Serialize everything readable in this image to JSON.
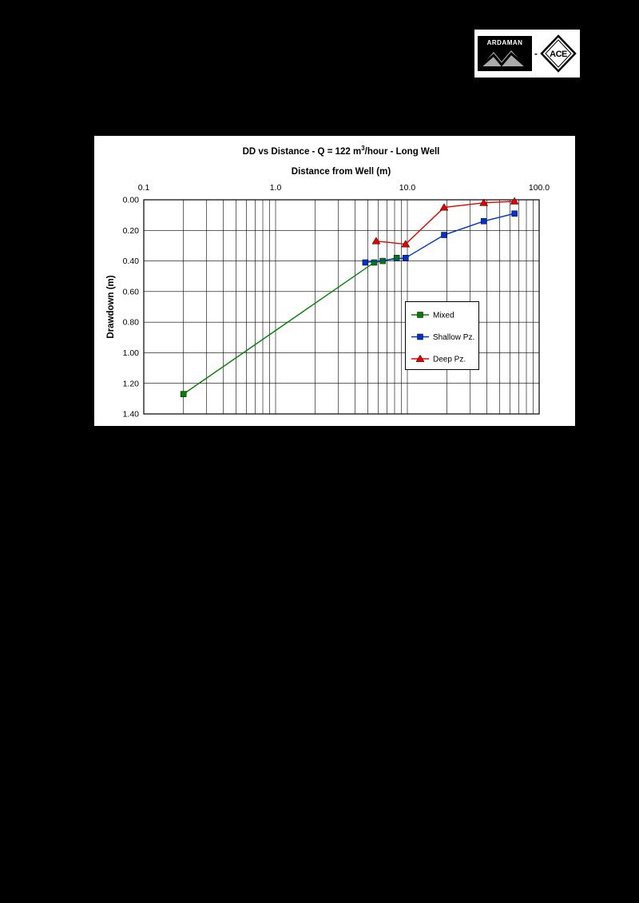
{
  "logo": {
    "ardaman_label": "ARDAMAN",
    "ace_label": "ACE",
    "separator": "-"
  },
  "chart": {
    "title": {
      "p1": "DD vs Distance - Q = 122 m",
      "sup": "3",
      "p2": "/hour - Long Well"
    },
    "x_axis_label": "Distance from Well (m)",
    "y_axis_label": "Drawdown (m)"
  },
  "chart_data": {
    "type": "line-scatter",
    "title": "DD vs Distance - Q = 122 m³/hour - Long Well",
    "xlabel": "Distance from Well (m)",
    "ylabel": "Drawdown (m)",
    "x_scale": "log",
    "x_range": [
      0.1,
      100
    ],
    "x_tick_labels": [
      "0.1",
      "1.0",
      "10.0",
      "100.0"
    ],
    "x_tick_values": [
      0.1,
      1,
      10,
      100
    ],
    "y_range": [
      0,
      1.4
    ],
    "y_axis_inverted_downward": true,
    "y_tick_labels": [
      "0.00",
      "0.20",
      "0.40",
      "0.60",
      "0.80",
      "1.00",
      "1.20",
      "1.40"
    ],
    "y_tick_values": [
      0,
      0.2,
      0.4,
      0.6,
      0.8,
      1.0,
      1.2,
      1.4
    ],
    "grid": {
      "horizontal_step": 0.2,
      "vertical_log_minor": true,
      "color": "#000000"
    },
    "legend_position": "inside-right",
    "series": [
      {
        "name": "Mixed",
        "color": "#008000",
        "marker": "square",
        "points": [
          [
            0.2,
            1.27
          ],
          [
            5.6,
            0.41
          ],
          [
            6.5,
            0.4
          ],
          [
            8.3,
            0.38
          ]
        ]
      },
      {
        "name": "Shallow Pz.",
        "color": "#0033CC",
        "marker": "square",
        "points": [
          [
            4.8,
            0.41
          ],
          [
            9.7,
            0.38
          ],
          [
            19,
            0.23
          ],
          [
            38,
            0.14
          ],
          [
            65,
            0.09
          ]
        ]
      },
      {
        "name": "Deep Pz.",
        "color": "#E80000",
        "marker": "triangle",
        "points": [
          [
            5.8,
            0.27
          ],
          [
            9.7,
            0.29
          ],
          [
            19,
            0.05
          ],
          [
            38,
            0.02
          ],
          [
            65,
            0.01
          ]
        ]
      }
    ]
  }
}
